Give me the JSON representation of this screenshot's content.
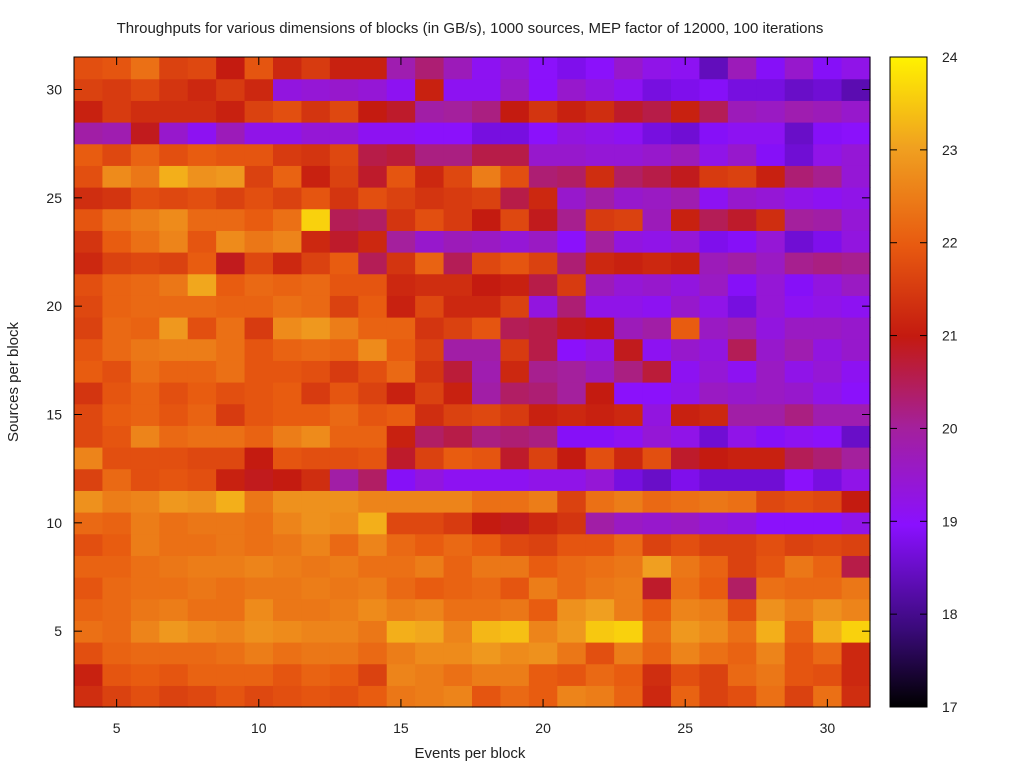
{
  "chart_data": {
    "type": "heatmap",
    "title": "Throughputs for various dimensions of blocks (in GB/s), 1000 sources, MEP factor of 12000, 100 iterations",
    "xlabel": "Events per block",
    "ylabel": "Sources per block",
    "x_range": [
      4,
      32
    ],
    "y_range": [
      2,
      32
    ],
    "x": [
      4,
      5,
      6,
      7,
      8,
      9,
      10,
      11,
      12,
      13,
      14,
      15,
      16,
      17,
      18,
      19,
      20,
      21,
      22,
      23,
      24,
      25,
      26,
      27,
      28,
      29,
      30,
      31
    ],
    "y": [
      2,
      3,
      4,
      5,
      6,
      7,
      8,
      9,
      10,
      11,
      12,
      13,
      14,
      15,
      16,
      17,
      18,
      19,
      20,
      21,
      22,
      23,
      24,
      25,
      26,
      27,
      28,
      29,
      30,
      31
    ],
    "x_ticks": [
      5,
      10,
      15,
      20,
      25,
      30
    ],
    "y_ticks": [
      5,
      10,
      15,
      20,
      25,
      30
    ],
    "colorbar": {
      "min": 17,
      "max": 24,
      "ticks": [
        17,
        18,
        19,
        20,
        21,
        22,
        23,
        24
      ],
      "palette": "black-purple-red-orange-yellow"
    },
    "values": [
      [
        21.3,
        21.6,
        21.8,
        21.6,
        21.7,
        21.9,
        21.7,
        21.8,
        21.9,
        21.8,
        22.0,
        22.4,
        22.5,
        22.6,
        21.9,
        22.2,
        22.0,
        22.6,
        22.5,
        22.1,
        21.2,
        22.1,
        21.6,
        21.8,
        22.3,
        21.6,
        22.3,
        21.3
      ],
      [
        21.1,
        21.9,
        22.0,
        21.9,
        22.1,
        22.1,
        22.1,
        21.9,
        22.1,
        22.0,
        21.6,
        22.6,
        22.5,
        22.3,
        22.5,
        22.5,
        22.0,
        21.9,
        22.2,
        22.0,
        21.3,
        21.8,
        21.6,
        22.2,
        22.4,
        21.9,
        21.8,
        21.2
      ],
      [
        21.8,
        22.1,
        22.2,
        22.2,
        22.2,
        22.3,
        22.5,
        22.3,
        22.4,
        22.4,
        22.2,
        22.5,
        22.7,
        22.7,
        22.9,
        22.7,
        22.8,
        22.4,
        21.8,
        22.5,
        22.1,
        22.6,
        22.3,
        22.1,
        22.6,
        21.9,
        22.2,
        21.2
      ],
      [
        22.3,
        22.2,
        22.6,
        22.9,
        22.7,
        22.6,
        22.8,
        22.7,
        22.6,
        22.6,
        22.4,
        23.2,
        23.1,
        22.6,
        23.3,
        23.4,
        22.6,
        22.9,
        23.5,
        23.6,
        22.3,
        22.9,
        22.7,
        22.3,
        23.2,
        22.1,
        23.2,
        23.6
      ],
      [
        22.1,
        22.2,
        22.4,
        22.5,
        22.3,
        22.3,
        22.7,
        22.4,
        22.4,
        22.5,
        22.7,
        22.5,
        22.6,
        22.3,
        22.3,
        22.4,
        22.0,
        22.8,
        23.0,
        22.5,
        22.0,
        22.6,
        22.5,
        21.8,
        22.8,
        22.5,
        22.8,
        22.6
      ],
      [
        21.9,
        22.2,
        22.3,
        22.3,
        22.4,
        22.3,
        22.4,
        22.4,
        22.5,
        22.4,
        22.5,
        22.2,
        22.0,
        22.1,
        22.2,
        21.9,
        22.5,
        22.2,
        22.4,
        22.5,
        20.8,
        22.3,
        22.0,
        20.4,
        22.3,
        22.2,
        22.2,
        22.4
      ],
      [
        22.1,
        22.1,
        22.3,
        22.4,
        22.5,
        22.5,
        22.6,
        22.5,
        22.4,
        22.5,
        22.3,
        22.3,
        22.5,
        22.1,
        22.4,
        22.4,
        22.0,
        22.2,
        22.3,
        22.4,
        23.0,
        22.4,
        22.1,
        21.6,
        21.9,
        22.4,
        22.1,
        20.6
      ],
      [
        21.8,
        22.0,
        22.5,
        22.3,
        22.3,
        22.4,
        22.3,
        22.4,
        22.6,
        22.2,
        22.6,
        22.2,
        22.0,
        22.2,
        22.0,
        21.7,
        21.6,
        21.9,
        21.9,
        22.2,
        21.6,
        21.8,
        21.6,
        21.6,
        21.8,
        21.6,
        21.7,
        21.6
      ],
      [
        22.2,
        22.1,
        22.5,
        22.3,
        22.4,
        22.4,
        22.3,
        22.6,
        22.8,
        22.7,
        23.2,
        21.7,
        21.7,
        21.5,
        21.0,
        20.9,
        21.2,
        21.4,
        19.9,
        19.6,
        19.5,
        19.6,
        19.4,
        19.3,
        19.0,
        19.0,
        19.0,
        19.2
      ],
      [
        22.8,
        22.5,
        22.6,
        22.9,
        22.8,
        23.2,
        22.4,
        22.8,
        22.8,
        22.8,
        22.6,
        22.6,
        22.6,
        22.6,
        22.3,
        22.3,
        22.5,
        21.6,
        22.3,
        22.5,
        22.2,
        22.3,
        22.4,
        22.3,
        21.7,
        21.8,
        21.7,
        21.0
      ],
      [
        21.6,
        22.2,
        21.8,
        21.9,
        21.8,
        21.1,
        20.9,
        21.0,
        21.3,
        19.9,
        20.4,
        18.9,
        19.3,
        19.1,
        19.1,
        19.1,
        19.2,
        19.2,
        19.4,
        18.7,
        18.5,
        18.8,
        18.6,
        18.6,
        18.6,
        19.0,
        18.7,
        19.2
      ],
      [
        22.6,
        21.8,
        21.8,
        21.8,
        21.7,
        21.7,
        21.0,
        21.9,
        21.8,
        21.8,
        21.9,
        20.8,
        21.6,
        22.0,
        21.9,
        20.8,
        21.6,
        21.0,
        21.8,
        21.2,
        21.8,
        20.8,
        21.0,
        21.1,
        21.1,
        20.5,
        20.3,
        20.0
      ],
      [
        21.7,
        21.9,
        22.6,
        22.2,
        22.3,
        22.3,
        22.1,
        22.5,
        22.7,
        22.1,
        22.1,
        21.1,
        20.4,
        20.6,
        20.2,
        20.3,
        20.2,
        18.9,
        18.9,
        19.1,
        19.4,
        19.2,
        18.6,
        19.2,
        18.9,
        19.1,
        19.0,
        18.5
      ],
      [
        21.7,
        22.0,
        22.1,
        21.9,
        22.1,
        21.5,
        21.9,
        22.0,
        22.0,
        22.2,
        21.9,
        22.0,
        21.3,
        21.6,
        21.7,
        21.5,
        21.1,
        21.2,
        21.1,
        21.2,
        19.3,
        21.1,
        21.2,
        19.9,
        19.9,
        20.2,
        19.8,
        19.8
      ],
      [
        21.4,
        21.9,
        22.1,
        21.8,
        22.0,
        21.8,
        21.9,
        22.0,
        21.5,
        21.9,
        21.6,
        21.1,
        21.6,
        21.1,
        19.9,
        20.4,
        20.3,
        20.0,
        21.0,
        19.0,
        19.0,
        19.2,
        19.6,
        19.5,
        19.6,
        19.5,
        19.2,
        19.0
      ],
      [
        22.0,
        21.8,
        22.3,
        22.1,
        22.1,
        22.3,
        21.9,
        21.9,
        21.8,
        21.5,
        21.8,
        22.2,
        21.4,
        20.7,
        19.8,
        21.2,
        20.1,
        20.0,
        19.7,
        20.2,
        20.7,
        19.1,
        19.4,
        19.1,
        19.6,
        19.2,
        19.4,
        19.1
      ],
      [
        21.9,
        22.2,
        22.4,
        22.5,
        22.5,
        22.3,
        21.9,
        22.1,
        22.2,
        22.1,
        22.7,
        22.0,
        21.6,
        19.9,
        19.9,
        21.5,
        20.6,
        19.0,
        19.2,
        20.9,
        19.1,
        19.5,
        19.3,
        20.5,
        19.5,
        19.8,
        19.3,
        19.5
      ],
      [
        21.6,
        22.2,
        22.1,
        22.9,
        21.8,
        22.3,
        21.5,
        22.7,
        22.9,
        22.5,
        22.1,
        22.1,
        21.4,
        21.6,
        21.9,
        20.5,
        20.6,
        20.9,
        21.0,
        19.7,
        19.9,
        22.0,
        19.6,
        19.8,
        19.3,
        19.6,
        19.6,
        19.5
      ],
      [
        21.7,
        22.1,
        22.2,
        22.2,
        22.2,
        22.1,
        22.1,
        22.3,
        22.2,
        21.6,
        22.0,
        21.1,
        21.7,
        21.2,
        21.2,
        21.6,
        19.3,
        20.3,
        19.2,
        19.2,
        19.1,
        19.5,
        19.2,
        18.7,
        19.4,
        19.1,
        19.2,
        19.1
      ],
      [
        21.8,
        22.1,
        22.2,
        22.4,
        23.1,
        22.0,
        22.2,
        22.1,
        22.2,
        21.9,
        21.9,
        21.2,
        21.3,
        21.3,
        21.0,
        21.1,
        20.6,
        21.5,
        19.7,
        19.4,
        19.5,
        19.3,
        19.6,
        18.9,
        19.4,
        18.9,
        19.3,
        19.6
      ],
      [
        21.2,
        21.6,
        21.7,
        21.6,
        22.0,
        20.9,
        21.7,
        21.2,
        21.6,
        22.0,
        20.5,
        21.4,
        22.1,
        20.5,
        21.7,
        21.9,
        21.6,
        20.3,
        21.2,
        21.1,
        21.2,
        21.1,
        19.7,
        19.9,
        19.6,
        20.1,
        20.2,
        20.1
      ],
      [
        21.4,
        22.0,
        22.3,
        22.6,
        21.9,
        22.7,
        22.4,
        22.6,
        21.2,
        20.8,
        21.2,
        20.0,
        19.5,
        19.7,
        19.6,
        19.4,
        19.6,
        19.0,
        20.0,
        19.3,
        19.2,
        19.4,
        18.8,
        18.9,
        19.4,
        18.6,
        18.8,
        19.3
      ],
      [
        21.9,
        22.3,
        22.5,
        22.7,
        22.2,
        22.2,
        22.0,
        22.3,
        23.6,
        20.5,
        20.4,
        21.4,
        21.8,
        21.5,
        21.0,
        21.7,
        20.9,
        20.1,
        21.5,
        21.6,
        19.7,
        21.1,
        20.5,
        20.8,
        21.3,
        20.0,
        19.9,
        19.4
      ],
      [
        21.3,
        21.4,
        21.8,
        21.7,
        21.8,
        21.6,
        21.8,
        21.6,
        21.9,
        21.4,
        21.8,
        21.6,
        21.4,
        21.5,
        21.6,
        20.6,
        21.2,
        19.5,
        19.9,
        19.5,
        19.6,
        19.8,
        19.1,
        19.5,
        19.4,
        19.2,
        19.1,
        19.2
      ],
      [
        21.8,
        22.7,
        22.4,
        23.2,
        22.8,
        22.9,
        21.6,
        22.1,
        21.1,
        21.6,
        20.8,
        21.9,
        21.2,
        21.7,
        22.5,
        21.8,
        20.3,
        20.4,
        21.3,
        20.4,
        20.6,
        20.9,
        21.5,
        21.6,
        21.1,
        20.3,
        20.1,
        19.4
      ],
      [
        22.0,
        21.7,
        22.1,
        21.8,
        22.0,
        21.9,
        21.9,
        21.5,
        21.4,
        21.7,
        20.6,
        20.7,
        20.2,
        20.2,
        20.6,
        20.6,
        19.5,
        19.5,
        19.4,
        19.4,
        19.5,
        19.7,
        19.2,
        19.5,
        18.9,
        18.6,
        19.2,
        19.4
      ],
      [
        19.9,
        19.8,
        20.9,
        19.5,
        19.1,
        19.7,
        19.2,
        19.2,
        19.4,
        19.4,
        19.1,
        19.1,
        19.0,
        19.0,
        18.7,
        18.7,
        19.0,
        19.3,
        19.2,
        19.1,
        18.7,
        18.6,
        18.9,
        19.1,
        19.1,
        18.5,
        18.9,
        19.0
      ],
      [
        21.1,
        21.5,
        21.3,
        21.3,
        21.3,
        21.1,
        21.6,
        21.8,
        21.4,
        21.7,
        21.0,
        20.8,
        19.9,
        20.0,
        20.2,
        21.0,
        21.4,
        21.1,
        21.3,
        20.8,
        20.6,
        21.1,
        20.5,
        19.7,
        19.6,
        19.8,
        19.7,
        19.5
      ],
      [
        21.6,
        21.5,
        21.7,
        21.4,
        21.2,
        21.5,
        21.2,
        19.3,
        19.4,
        19.5,
        19.4,
        19.1,
        21.1,
        19.1,
        19.1,
        19.6,
        19.0,
        19.5,
        19.3,
        19.1,
        18.7,
        18.8,
        18.9,
        18.7,
        18.7,
        18.5,
        18.6,
        18.3
      ],
      [
        21.8,
        21.9,
        22.3,
        21.6,
        21.7,
        21.0,
        21.9,
        21.2,
        21.5,
        21.1,
        21.1,
        19.8,
        20.3,
        19.7,
        19.1,
        19.4,
        19.0,
        18.8,
        19.0,
        19.5,
        19.2,
        19.1,
        18.4,
        19.7,
        18.9,
        19.5,
        18.9,
        19.2
      ]
    ]
  }
}
